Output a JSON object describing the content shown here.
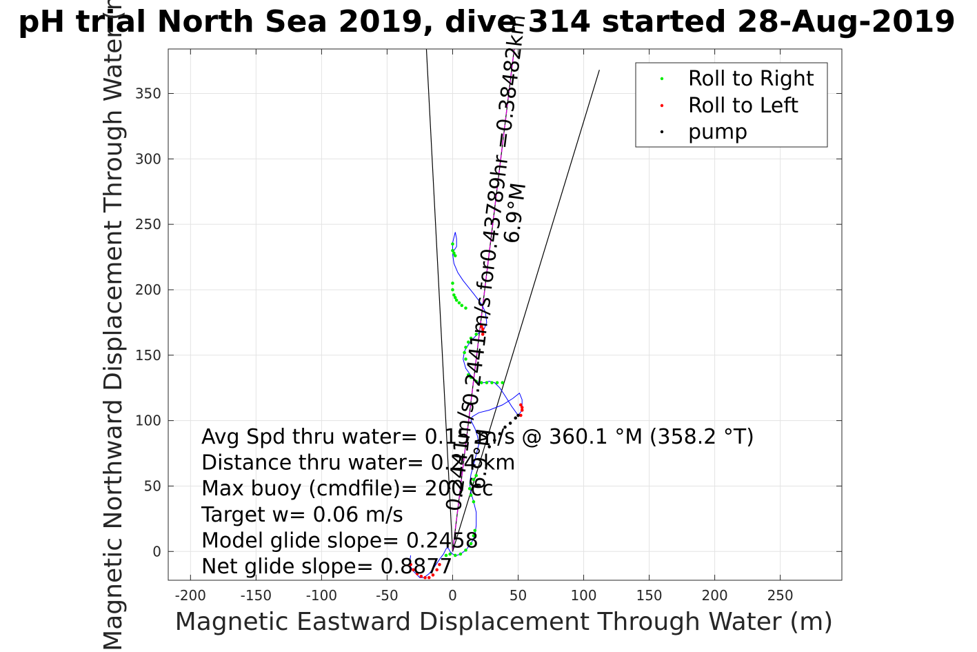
{
  "chart_data": {
    "type": "scatter",
    "title": "pH trial North Sea 2019, dive 314 started 28-Aug-2019",
    "xlabel": "Magnetic Eastward Displacement Through Water (m)",
    "ylabel": "Magnetic Northward Displacement Through Water (m)",
    "xlim": [
      -217,
      297
    ],
    "ylim": [
      -22,
      384
    ],
    "xticks": [
      -200,
      -150,
      -100,
      -50,
      0,
      50,
      100,
      150,
      200,
      250
    ],
    "yticks": [
      0,
      50,
      100,
      150,
      200,
      250,
      300,
      350
    ],
    "grid": true,
    "legend": {
      "placement": "top-right",
      "entries": [
        {
          "label": "Roll to Right",
          "color": "#00ee00"
        },
        {
          "label": "Roll to Left",
          "color": "#ff0000"
        },
        {
          "label": "pump",
          "color": "#000000"
        }
      ]
    },
    "stats": [
      "Avg Spd thru water=  0.15 m/s @ 360.1 °M (358.2 °T)",
      "Distance thru water=  0.24 km",
      "Max buoy (cmdfile)= 200 cc",
      "Target w= 0.06 m/s",
      "Model glide slope= 0.2458",
      "Net glide slope= 0.8877"
    ],
    "annotations": [
      {
        "line1": "0.2441m/s for0.43789hr =0.38482km",
        "line2": "6.9°M",
        "x": 37,
        "y": 260
      },
      {
        "line1": "0.2441m/s",
        "line2": "6.9°M",
        "x": 11,
        "y": 72
      }
    ],
    "heading_lines": [
      {
        "name": "west-line",
        "color": "#000000",
        "x": [
          0,
          -20
        ],
        "y": [
          0,
          384
        ]
      },
      {
        "name": "depth-avg-line",
        "color": "#000000",
        "x": [
          0,
          47
        ],
        "y": [
          0,
          384
        ]
      },
      {
        "name": "heading-line",
        "color": "#cc00cc",
        "dash": true,
        "x": [
          0,
          47
        ],
        "y": [
          0,
          384
        ]
      },
      {
        "name": "current-line",
        "color": "#000000",
        "x": [
          0,
          112
        ],
        "y": [
          0,
          368
        ]
      }
    ],
    "series": [
      {
        "name": "track",
        "color": "#0000ff",
        "x": [
          -32,
          -33,
          -30,
          -27,
          -25,
          -22,
          -18,
          -14,
          -10,
          -7,
          -5,
          -4,
          -3,
          -2,
          0,
          3,
          6,
          10,
          14,
          17,
          18,
          18,
          16,
          14,
          13,
          14,
          16,
          18,
          20,
          19,
          17,
          15,
          14,
          15,
          20,
          28,
          38,
          46,
          51,
          53,
          53,
          50,
          45,
          40,
          36,
          32,
          28,
          24,
          20,
          15,
          10,
          8,
          9,
          12,
          16,
          20,
          24,
          26,
          25,
          22,
          19,
          16,
          12,
          8,
          4,
          1,
          0,
          1,
          3,
          3,
          2,
          0,
          0,
          1
        ],
        "y": [
          -3,
          -10,
          -15,
          -18,
          -20,
          -20,
          -17,
          -12,
          -6,
          -2,
          2,
          3,
          2,
          0,
          -2,
          -3,
          -2,
          1,
          6,
          12,
          20,
          30,
          38,
          45,
          52,
          59,
          66,
          74,
          82,
          88,
          94,
          98,
          100,
          103,
          106,
          108,
          112,
          117,
          121,
          116,
          108,
          104,
          111,
          119,
          125,
          129,
          130,
          129,
          129,
          133,
          140,
          147,
          153,
          158,
          163,
          167,
          170,
          175,
          183,
          189,
          193,
          197,
          202,
          207,
          213,
          220,
          227,
          230,
          233,
          239,
          244,
          236,
          230,
          226
        ]
      },
      {
        "name": "Roll to Right",
        "color": "#00ee00",
        "x": [
          -5,
          -2,
          2,
          6,
          10,
          14,
          16,
          17,
          16,
          14,
          13,
          14,
          16,
          18,
          12,
          14,
          18,
          22,
          26,
          30,
          34,
          38,
          10,
          9,
          10,
          12,
          14,
          18,
          0,
          0,
          1,
          2,
          3,
          5,
          7,
          10,
          0,
          0,
          1,
          2
        ],
        "y": [
          -3,
          -2,
          -3,
          -2,
          1,
          6,
          12,
          16,
          38,
          43,
          48,
          52,
          55,
          58,
          135,
          133,
          130,
          129,
          129,
          129,
          129,
          129,
          147,
          152,
          156,
          160,
          163,
          166,
          205,
          200,
          196,
          194,
          192,
          190,
          188,
          186,
          235,
          230,
          228,
          226
        ]
      },
      {
        "name": "Roll to Left",
        "color": "#ff0000",
        "x": [
          -32,
          -30,
          -27,
          -24,
          -21,
          -18,
          -15,
          -12,
          -10,
          52,
          53,
          53,
          52,
          23,
          23,
          23,
          22
        ],
        "y": [
          -10,
          -14,
          -17,
          -19,
          -20,
          -20,
          -18,
          -14,
          -10,
          104,
          108,
          110,
          112,
          168,
          170,
          166,
          172
        ]
      },
      {
        "name": "pump",
        "color": "#000000",
        "x": [
          28,
          32,
          36,
          40,
          44,
          48,
          50
        ],
        "y": [
          80,
          85,
          90,
          95,
          98,
          102,
          104
        ]
      }
    ]
  }
}
